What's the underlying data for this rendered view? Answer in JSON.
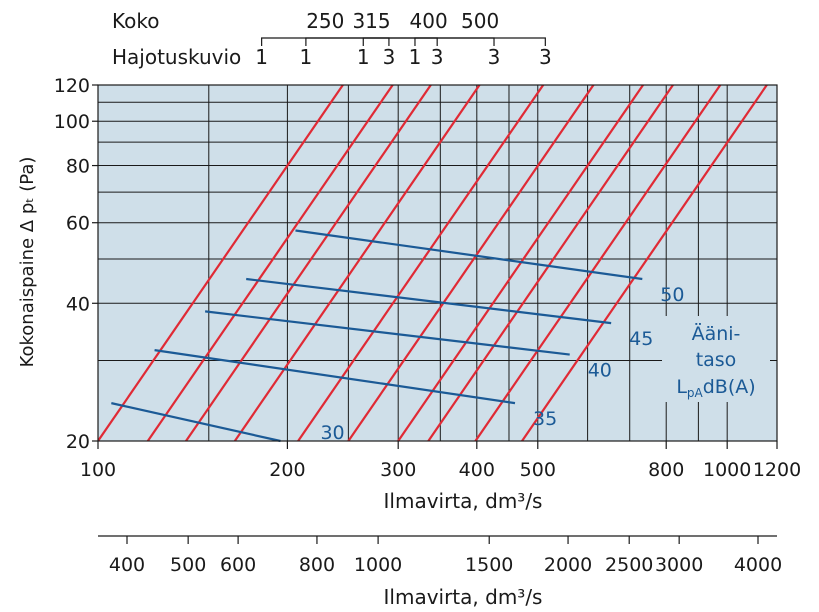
{
  "header": {
    "koko_label": "Koko",
    "hajotus_label": "Hajotuskuvio",
    "sizes": [
      {
        "size": "250",
        "from": "1",
        "to": "3"
      },
      {
        "size": "315",
        "from": "1",
        "to": "3"
      },
      {
        "size": "400",
        "from": "1",
        "to": "3"
      },
      {
        "size": "500",
        "from": "1",
        "to": "3"
      }
    ]
  },
  "chart_data": {
    "type": "line",
    "xscale": "log",
    "yscale": "log",
    "xlim": [
      100,
      1200
    ],
    "ylim": [
      20,
      120
    ],
    "xlabel": "Ilmavirta, dm³/s",
    "ylabel": "Kokonaispaine Δ pₜ (Pa)",
    "x_ticks": [
      100,
      200,
      300,
      400,
      500,
      800,
      1000,
      1200
    ],
    "x_tick_labels": [
      "100",
      "200",
      "300",
      "400",
      "500",
      "800",
      "1000",
      "1200"
    ],
    "x_grid": [
      100,
      150,
      200,
      250,
      300,
      350,
      400,
      450,
      500,
      600,
      700,
      800,
      900,
      1000,
      1200
    ],
    "y_ticks": [
      20,
      40,
      60,
      80,
      100,
      120
    ],
    "y_tick_labels": [
      "20",
      "40",
      "60",
      "80",
      "100",
      "120"
    ],
    "y_grid": [
      20,
      30,
      40,
      50,
      60,
      70,
      80,
      90,
      100,
      110,
      120
    ],
    "pressure_lines": [
      {
        "x_at_20": 100,
        "x_at_120": 245
      },
      {
        "x_at_20": 120,
        "x_at_120": 294
      },
      {
        "x_at_20": 138,
        "x_at_120": 338
      },
      {
        "x_at_20": 165,
        "x_at_120": 404
      },
      {
        "x_at_20": 208,
        "x_at_120": 510
      },
      {
        "x_at_20": 250,
        "x_at_120": 613
      },
      {
        "x_at_20": 300,
        "x_at_120": 735
      },
      {
        "x_at_20": 335,
        "x_at_120": 820
      },
      {
        "x_at_20": 398,
        "x_at_120": 975
      },
      {
        "x_at_20": 472,
        "x_at_120": 1156
      }
    ],
    "sound_lines": [
      {
        "label": "30",
        "x1": 105,
        "y1": 24.2,
        "x2": 195,
        "y2": 20
      },
      {
        "label": "35",
        "x1": 123,
        "y1": 31.6,
        "x2": 460,
        "y2": 24.2
      },
      {
        "label": "40",
        "x1": 148,
        "y1": 38.4,
        "x2": 562,
        "y2": 30.9
      },
      {
        "label": "45",
        "x1": 172,
        "y1": 45.2,
        "x2": 654,
        "y2": 36.2
      },
      {
        "label": "50",
        "x1": 206,
        "y1": 57.7,
        "x2": 733,
        "y2": 45.2
      }
    ],
    "legend_text": [
      "Ääni-",
      "taso",
      "LpAdB(A)"
    ],
    "colors": {
      "plot_bg": "#cfdfe9",
      "grid": "#1a1a1a",
      "pressure_line": "#e02a35",
      "sound_line": "#1b5a96",
      "text": "#1a1a1a",
      "sound_text": "#1b5a96"
    }
  },
  "secondary_axis": {
    "label": "Ilmavirta, dm³/s",
    "ticks": [
      {
        "value": 400,
        "label": "400"
      },
      {
        "value": 500,
        "label": "500"
      },
      {
        "value": 600,
        "label": "600"
      },
      {
        "value": 800,
        "label": "800"
      },
      {
        "value": 1000,
        "label": "1000"
      },
      {
        "value": 1500,
        "label": "1500"
      },
      {
        "value": 2000,
        "label": "2000"
      },
      {
        "value": 2500,
        "label": "2500"
      },
      {
        "value": 3000,
        "label": "3000"
      },
      {
        "value": 4000,
        "label": "4000"
      }
    ]
  }
}
